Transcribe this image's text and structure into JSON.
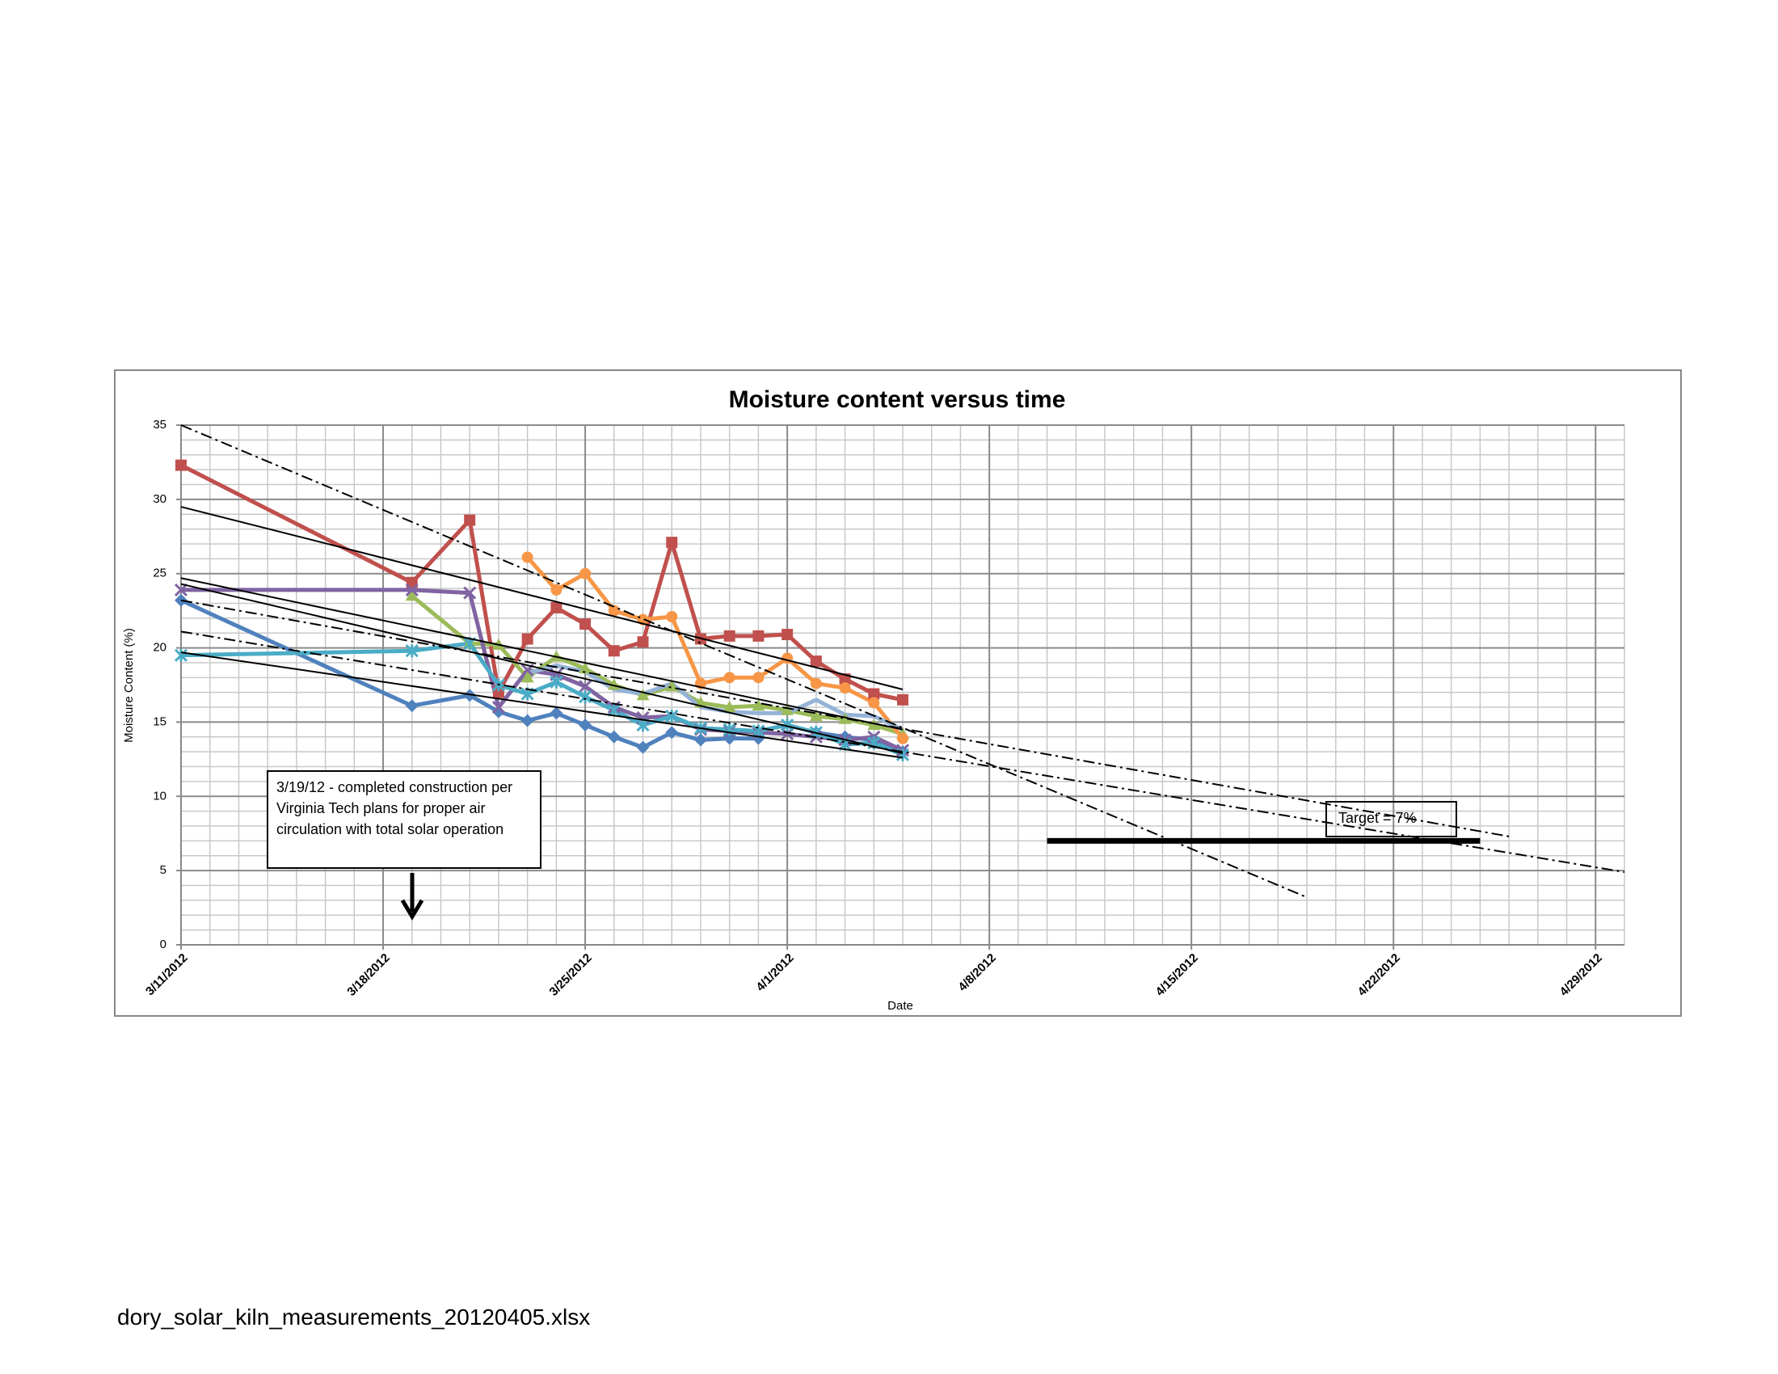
{
  "chart_data": {
    "type": "line",
    "title": "Moisture content versus time",
    "x_label": "Date",
    "y_label": "Moisture Content (%)",
    "x": [
      "2012-03-11",
      "2012-03-19",
      "2012-03-21",
      "2012-03-22",
      "2012-03-23",
      "2012-03-24",
      "2012-03-25",
      "2012-03-26",
      "2012-03-27",
      "2012-03-28",
      "2012-03-29",
      "2012-03-30",
      "2012-03-31",
      "2012-04-01",
      "2012-04-02",
      "2012-04-03",
      "2012-04-04",
      "2012-04-05"
    ],
    "series": [
      {
        "color": "#4f81bd",
        "marker": "diamond",
        "values": [
          23.2,
          16.1,
          16.8,
          15.7,
          15.1,
          15.6,
          14.8,
          14.0,
          13.3,
          14.3,
          13.8,
          13.9,
          13.9,
          null,
          14.3,
          14.0,
          13.8,
          13.0
        ]
      },
      {
        "color": "#c0504d",
        "marker": "square",
        "values": [
          32.3,
          24.4,
          28.6,
          17.0,
          20.6,
          22.7,
          21.6,
          19.8,
          20.4,
          27.1,
          20.6,
          20.8,
          20.8,
          20.9,
          19.1,
          17.9,
          16.9,
          16.5
        ]
      },
      {
        "color": "#9bbb59",
        "marker": "triangle",
        "values": [
          null,
          23.5,
          20.3,
          20.2,
          18.0,
          19.4,
          18.6,
          17.5,
          16.8,
          17.4,
          16.3,
          16.0,
          16.1,
          15.8,
          15.4,
          15.2,
          14.8,
          14.2
        ]
      },
      {
        "color": "#8064a2",
        "marker": "x",
        "values": [
          23.9,
          23.9,
          23.7,
          16.0,
          18.5,
          18.2,
          17.4,
          16.0,
          15.3,
          15.4,
          14.5,
          14.4,
          14.3,
          14.2,
          14.0,
          13.8,
          14.0,
          13.1
        ]
      },
      {
        "color": "#4bacc6",
        "marker": "asterisk",
        "values": [
          19.5,
          19.8,
          20.3,
          17.5,
          16.9,
          17.7,
          16.7,
          15.8,
          14.8,
          15.4,
          14.6,
          14.5,
          14.4,
          14.8,
          14.3,
          13.5,
          13.6,
          12.8
        ]
      },
      {
        "color": "#f79646",
        "marker": "circle",
        "values": [
          null,
          null,
          null,
          null,
          26.1,
          23.9,
          25.0,
          22.5,
          21.9,
          22.1,
          17.6,
          18.0,
          18.0,
          19.3,
          17.6,
          17.3,
          16.3,
          13.9
        ]
      },
      {
        "color": "#95b3d7",
        "marker": "none",
        "values": [
          null,
          null,
          null,
          null,
          18.3,
          18.8,
          18.4,
          17.2,
          16.9,
          17.6,
          16.0,
          15.7,
          15.6,
          15.6,
          16.5,
          15.5,
          15.4,
          14.5
        ]
      }
    ],
    "trendlines": [
      {
        "style": "dashdot",
        "x": [
          "2012-03-11",
          "2012-04-19"
        ],
        "values": [
          35.0,
          3.2
        ]
      },
      {
        "style": "dashdot",
        "x": [
          "2012-03-11",
          "2012-04-26"
        ],
        "values": [
          23.2,
          7.3
        ]
      },
      {
        "style": "dashdot",
        "x": [
          "2012-03-11",
          "2012-04-30"
        ],
        "values": [
          21.1,
          4.9
        ]
      },
      {
        "style": "solid",
        "x": [
          "2012-03-11",
          "2012-04-05"
        ],
        "values": [
          29.5,
          17.2
        ]
      },
      {
        "style": "solid",
        "x": [
          "2012-03-11",
          "2012-04-05"
        ],
        "values": [
          24.7,
          14.5
        ]
      },
      {
        "style": "solid",
        "x": [
          "2012-03-11",
          "2012-04-05"
        ],
        "values": [
          24.3,
          12.9
        ]
      },
      {
        "style": "solid",
        "x": [
          "2012-03-11",
          "2012-04-05"
        ],
        "values": [
          19.7,
          12.6
        ]
      }
    ],
    "target_line": {
      "x": [
        "2012-04-10",
        "2012-04-25"
      ],
      "value": 7,
      "label": "Target = 7%"
    },
    "annotation": "3/19/12 - completed  construction per  Virginia Tech plans for proper air circulation with total solar operation",
    "xlim": [
      "2012-03-11",
      "2012-04-30"
    ],
    "xticks": [
      {
        "value": "2012-03-11",
        "label": "3/11/2012"
      },
      {
        "value": "2012-03-18",
        "label": "3/18/2012"
      },
      {
        "value": "2012-03-25",
        "label": "3/25/2012"
      },
      {
        "value": "2012-04-01",
        "label": "4/1/2012"
      },
      {
        "value": "2012-04-08",
        "label": "4/8/2012"
      },
      {
        "value": "2012-04-15",
        "label": "4/15/2012"
      },
      {
        "value": "2012-04-22",
        "label": "4/22/2012"
      },
      {
        "value": "2012-04-29",
        "label": "4/29/2012"
      }
    ],
    "ylim": [
      0,
      35
    ],
    "yticks": [
      0,
      5,
      10,
      15,
      20,
      25,
      30,
      35
    ],
    "grid": true,
    "minor_grid": true
  },
  "footer": "dory_solar_kiln_measurements_20120405.xlsx"
}
